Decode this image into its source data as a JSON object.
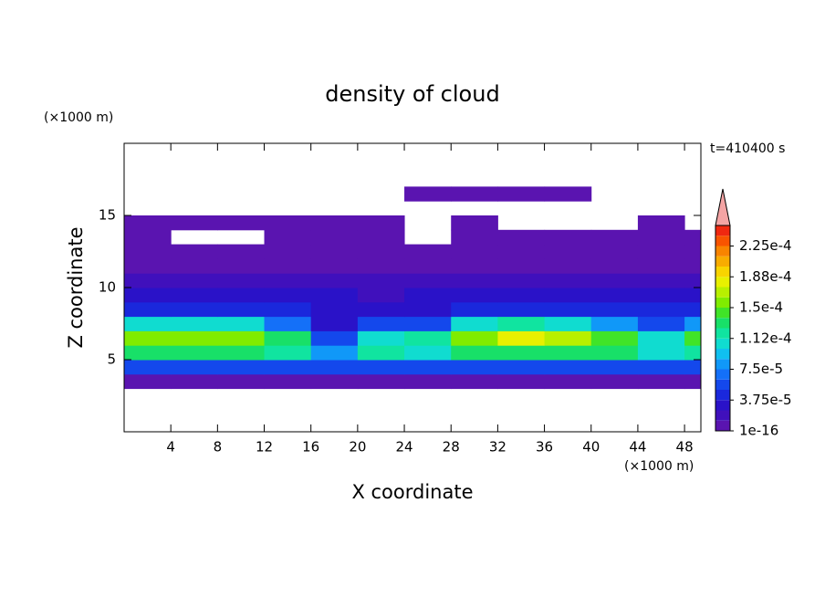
{
  "chart_data": {
    "type": "contour",
    "title": "density of cloud",
    "time_label": "t=410400 s",
    "x_label": "X coordinate",
    "y_label": "Z coordinate",
    "x_unit": "(×1000 m)",
    "y_unit": "(×1000 m)",
    "xlim": [
      0,
      49.4
    ],
    "ylim": [
      0,
      20
    ],
    "xticks": [
      4,
      8,
      12,
      16,
      20,
      24,
      28,
      32,
      36,
      40,
      44,
      48
    ],
    "yticks": [
      5,
      10,
      15
    ],
    "x": [
      2,
      6,
      10,
      14,
      18,
      22,
      26,
      30,
      34,
      38,
      42,
      46,
      50
    ],
    "z": [
      3.5,
      4.5,
      5.5,
      6.5,
      7.5,
      8.5,
      9.5,
      10.5,
      11.5,
      12.5,
      13.5,
      14.5,
      15.5,
      16.5
    ],
    "values": [
      [
        5e-06,
        5e-06,
        5e-06,
        5e-06,
        5e-06,
        5e-06,
        5e-06,
        5e-06,
        5e-06,
        5e-06,
        5e-06,
        5e-06,
        5e-06
      ],
      [
        6e-05,
        6e-05,
        6e-05,
        6e-05,
        5e-05,
        5e-05,
        6e-05,
        6e-05,
        6e-05,
        6e-05,
        6e-05,
        5e-05,
        6e-05
      ],
      [
        0.00013,
        0.000135,
        0.00013,
        0.00012,
        8e-05,
        0.000115,
        0.00011,
        0.00013,
        0.000135,
        0.000135,
        0.000125,
        0.00011,
        0.00012
      ],
      [
        0.000155,
        0.00016,
        0.000155,
        0.00013,
        6e-05,
        0.00011,
        0.000115,
        0.00016,
        0.000175,
        0.000165,
        0.00014,
        0.0001,
        0.00014
      ],
      [
        0.0001,
        0.00011,
        0.000105,
        7e-05,
        3.5e-05,
        5e-05,
        6e-05,
        0.000105,
        0.00012,
        0.00011,
        8e-05,
        6e-05,
        8e-05
      ],
      [
        4.5e-05,
        4e-05,
        4e-05,
        4e-05,
        3.5e-05,
        3e-05,
        3e-05,
        4e-05,
        4.5e-05,
        4.5e-05,
        4e-05,
        4e-05,
        4e-05
      ],
      [
        2.5e-05,
        2.5e-05,
        3e-05,
        3e-05,
        2.5e-05,
        2e-05,
        2.5e-05,
        3e-05,
        3e-05,
        2.5e-05,
        2.5e-05,
        3e-05,
        2.5e-05
      ],
      [
        1.8e-05,
        1.5e-05,
        1.8e-05,
        2e-05,
        1.8e-05,
        1.5e-05,
        1.8e-05,
        2e-05,
        1.8e-05,
        1.5e-05,
        1.5e-05,
        1.8e-05,
        1.5e-05
      ],
      [
        1.2e-05,
        1e-05,
        1.2e-05,
        1.2e-05,
        1e-05,
        1e-05,
        1.2e-05,
        1.2e-05,
        1e-05,
        8e-06,
        8e-06,
        1e-05,
        8e-06
      ],
      [
        8e-06,
        8e-06,
        8e-06,
        5e-06,
        5e-06,
        5e-06,
        5e-06,
        5e-06,
        5e-06,
        5e-06,
        5e-06,
        5e-06,
        5e-06
      ],
      [
        5e-06,
        null,
        null,
        5e-06,
        5e-06,
        5e-06,
        null,
        5e-06,
        5e-06,
        5e-06,
        5e-06,
        5e-06,
        5e-06
      ],
      [
        5e-06,
        5e-06,
        5e-06,
        5e-06,
        5e-06,
        5e-06,
        null,
        5e-06,
        null,
        null,
        null,
        5e-06,
        null
      ],
      [
        null,
        null,
        null,
        null,
        null,
        null,
        null,
        null,
        null,
        null,
        null,
        null,
        null
      ],
      [
        null,
        null,
        null,
        null,
        null,
        null,
        5e-06,
        5e-06,
        5e-06,
        5e-06,
        null,
        null,
        null
      ]
    ],
    "levels": [
      1e-16,
      1.25e-05,
      2.5e-05,
      3.75e-05,
      5e-05,
      6.25e-05,
      7.5e-05,
      8.75e-05,
      0.0001,
      0.0001125,
      0.000125,
      0.0001375,
      0.00015,
      0.0001625,
      0.000175,
      0.0001875,
      0.0002,
      0.0002125,
      0.000225,
      0.0002375,
      0.00025
    ],
    "colors": [
      "#5a14b0",
      "#4010bc",
      "#2a12c8",
      "#1a28dc",
      "#1448ec",
      "#1470f8",
      "#1098f8",
      "#10c0f0",
      "#10dcd0",
      "#10e4a0",
      "#18e068",
      "#40e428",
      "#80ec00",
      "#b8f000",
      "#e8f000",
      "#f8d400",
      "#f8ac00",
      "#f88400",
      "#f85400",
      "#f02810"
    ],
    "extend_color": "#f4a4a4",
    "colorbar_ticks": [
      1e-16,
      {
        "value": 3.75e-05,
        "label": "3.75e-5"
      },
      {
        "value": 7.5e-05,
        "label": "7.5e-5"
      },
      {
        "value": 0.0001125,
        "label": "1.12e-4"
      },
      {
        "value": 0.00015,
        "label": "1.5e-4"
      },
      {
        "value": 0.0001875,
        "label": "1.88e-4"
      },
      {
        "value": 0.000225,
        "label": "2.25e-4"
      }
    ]
  }
}
